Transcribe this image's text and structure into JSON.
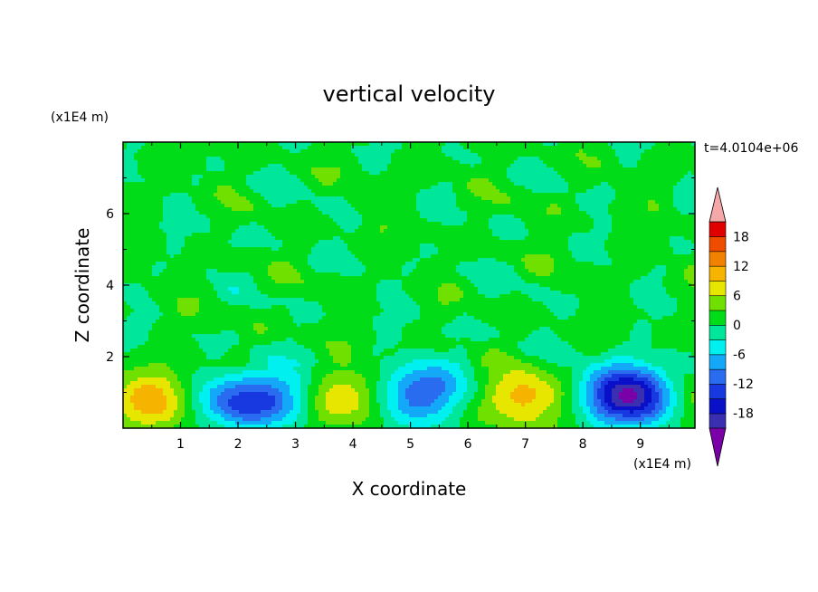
{
  "chart_data": {
    "type": "heatmap",
    "title": "vertical velocity",
    "time_label": "t=4.0104e+06",
    "xlabel": "X coordinate",
    "ylabel": "Z coordinate",
    "x_unit": "(x1E4 m)",
    "y_unit": "(x1E4 m)",
    "xlim": [
      0,
      9.95
    ],
    "ylim": [
      0,
      8
    ],
    "x_ticks": [
      "1",
      "2",
      "3",
      "4",
      "5",
      "6",
      "7",
      "8",
      "9"
    ],
    "y_ticks": [
      "2",
      "4",
      "6"
    ],
    "colorbar": {
      "tick_labels": [
        "18",
        "12",
        "6",
        "0",
        "-6",
        "-12",
        "-18"
      ],
      "levels": [
        -21,
        -18,
        -15,
        -12,
        -9,
        -6,
        -3,
        0,
        3,
        6,
        9,
        12,
        15,
        18,
        21
      ],
      "colors": [
        "#7a00a8",
        "#3a2fb0",
        "#0a10c8",
        "#1838e0",
        "#2a6cf0",
        "#14a8f8",
        "#00f0f0",
        "#00e69a",
        "#00dc18",
        "#70e000",
        "#e6e600",
        "#f6b400",
        "#f08200",
        "#f04c00",
        "#e00000",
        "#f4a8a8"
      ]
    },
    "features": [
      {
        "kind": "updraft",
        "x": 0.5,
        "z": 0.8,
        "peak": 10
      },
      {
        "kind": "downdraft",
        "x": 2.0,
        "z": 0.75,
        "peak": -12
      },
      {
        "kind": "downdraft",
        "x": 2.75,
        "z": 0.85,
        "peak": -8
      },
      {
        "kind": "updraft",
        "x": 3.85,
        "z": 0.8,
        "peak": 9
      },
      {
        "kind": "downdraft",
        "x": 5.0,
        "z": 0.8,
        "peak": -9
      },
      {
        "kind": "downdraft",
        "x": 5.4,
        "z": 1.25,
        "peak": -6
      },
      {
        "kind": "updraft",
        "x": 6.95,
        "z": 0.85,
        "peak": 10
      },
      {
        "kind": "downdraft",
        "x": 8.6,
        "z": 1.0,
        "peak": -12
      },
      {
        "kind": "downdraft",
        "x": 9.05,
        "z": 0.85,
        "peak": -14
      },
      {
        "kind": "updraft",
        "x": 9.9,
        "z": 0.8,
        "peak": 5
      }
    ]
  }
}
